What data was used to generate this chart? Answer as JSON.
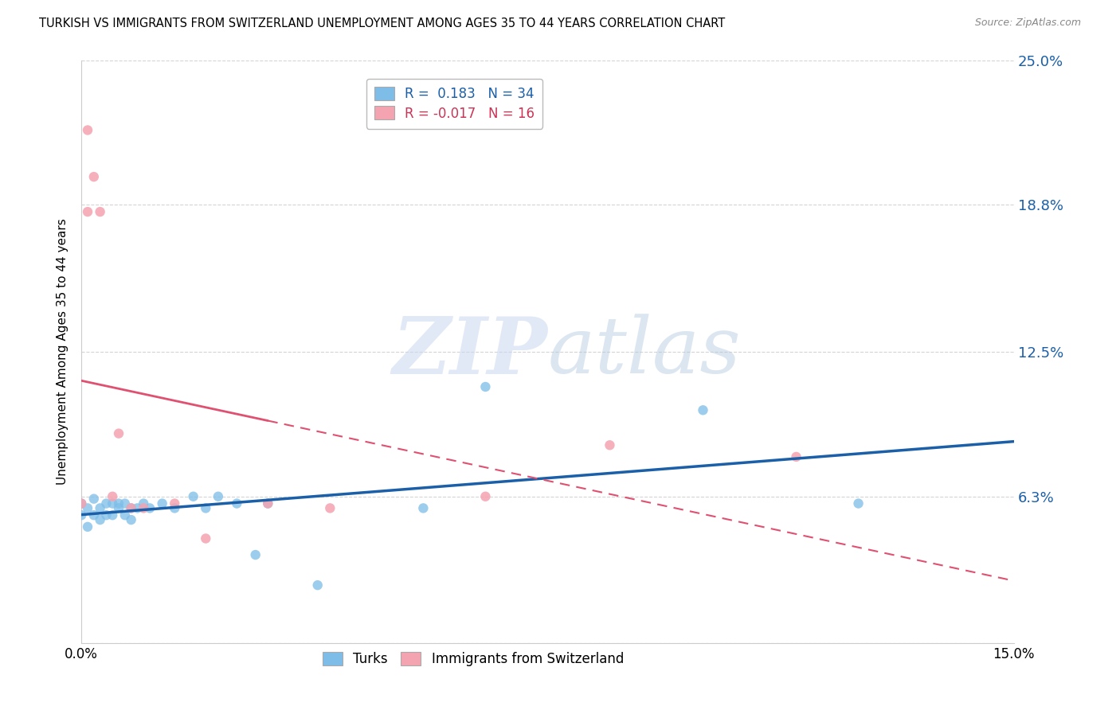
{
  "title": "TURKISH VS IMMIGRANTS FROM SWITZERLAND UNEMPLOYMENT AMONG AGES 35 TO 44 YEARS CORRELATION CHART",
  "source": "Source: ZipAtlas.com",
  "ylabel": "Unemployment Among Ages 35 to 44 years",
  "xlim": [
    0.0,
    0.15
  ],
  "ylim": [
    0.0,
    0.25
  ],
  "yticks": [
    0.0,
    0.063,
    0.125,
    0.188,
    0.25
  ],
  "ytick_labels": [
    "",
    "6.3%",
    "12.5%",
    "18.8%",
    "25.0%"
  ],
  "turks_x": [
    0.0,
    0.0,
    0.001,
    0.001,
    0.002,
    0.002,
    0.003,
    0.003,
    0.004,
    0.004,
    0.005,
    0.005,
    0.006,
    0.006,
    0.007,
    0.007,
    0.008,
    0.008,
    0.009,
    0.01,
    0.011,
    0.013,
    0.015,
    0.018,
    0.02,
    0.022,
    0.025,
    0.028,
    0.03,
    0.038,
    0.055,
    0.065,
    0.1,
    0.125
  ],
  "turks_y": [
    0.055,
    0.06,
    0.05,
    0.058,
    0.055,
    0.062,
    0.058,
    0.053,
    0.06,
    0.055,
    0.06,
    0.055,
    0.06,
    0.058,
    0.055,
    0.06,
    0.058,
    0.053,
    0.058,
    0.06,
    0.058,
    0.06,
    0.058,
    0.063,
    0.058,
    0.063,
    0.06,
    0.038,
    0.06,
    0.025,
    0.058,
    0.11,
    0.1,
    0.06
  ],
  "swiss_x": [
    0.0,
    0.001,
    0.001,
    0.002,
    0.003,
    0.005,
    0.006,
    0.008,
    0.01,
    0.015,
    0.02,
    0.03,
    0.04,
    0.065,
    0.085,
    0.115
  ],
  "swiss_y": [
    0.06,
    0.22,
    0.185,
    0.2,
    0.185,
    0.063,
    0.09,
    0.058,
    0.058,
    0.06,
    0.045,
    0.06,
    0.058,
    0.063,
    0.085,
    0.08
  ],
  "turks_color": "#7dbde8",
  "swiss_color": "#f4a3b0",
  "trendline_turks_color": "#1a5fa8",
  "trendline_swiss_color": "#e05070",
  "trendline_swiss_solid_end": 0.03,
  "watermark_zip": "ZIP",
  "watermark_atlas": "atlas",
  "background_color": "#ffffff",
  "grid_color": "#d0d0d0",
  "legend1_label": "R =  0.183   N = 34",
  "legend2_label": "R = -0.017   N = 16",
  "bottom_label1": "Turks",
  "bottom_label2": "Immigrants from Switzerland"
}
